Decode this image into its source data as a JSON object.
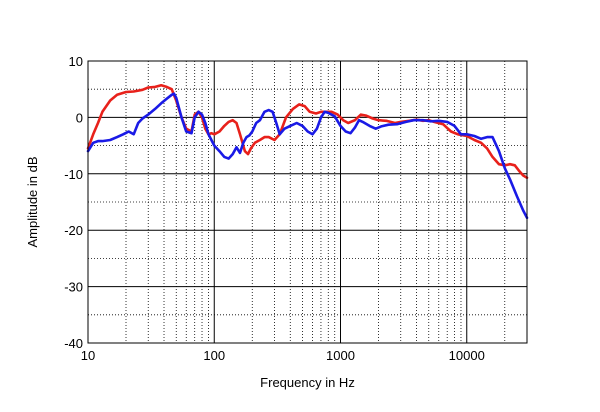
{
  "chart_data": {
    "type": "line",
    "title": "",
    "xlabel": "Frequency in Hz",
    "ylabel": "Amplitude in dB",
    "x_scale": "log",
    "xlim": [
      10,
      30000
    ],
    "ylim": [
      -40,
      10
    ],
    "grid": true,
    "x_ticks": [
      {
        "value": 10,
        "label": "10"
      },
      {
        "value": 100,
        "label": "100"
      },
      {
        "value": 1000,
        "label": "1000"
      },
      {
        "value": 10000,
        "label": "10000"
      }
    ],
    "y_ticks": [
      {
        "value": 10,
        "label": "10"
      },
      {
        "value": 0,
        "label": "0"
      },
      {
        "value": -10,
        "label": "-10"
      },
      {
        "value": -20,
        "label": "-20"
      },
      {
        "value": -30,
        "label": "-30"
      },
      {
        "value": -40,
        "label": "-40"
      }
    ],
    "series": [
      {
        "color": "#e8211b",
        "x": [
          10,
          11,
          12,
          13,
          15,
          17,
          20,
          23,
          27,
          30,
          34,
          38,
          42,
          46,
          50,
          55,
          60,
          66,
          70,
          75,
          80,
          85,
          90,
          95,
          100,
          110,
          120,
          130,
          140,
          150,
          160,
          175,
          185,
          195,
          210,
          230,
          250,
          270,
          300,
          330,
          370,
          420,
          470,
          520,
          570,
          640,
          700,
          780,
          850,
          950,
          1050,
          1150,
          1300,
          1450,
          1600,
          1800,
          2000,
          2300,
          2700,
          3000,
          3500,
          4000,
          4500,
          5000,
          5500,
          6500,
          7500,
          8500,
          10000,
          11500,
          13000,
          14500,
          16000,
          18000,
          20000,
          22000,
          24000,
          26000,
          28000,
          30000
        ],
        "y": [
          -5.5,
          -3,
          -1,
          1,
          3,
          4,
          4.5,
          4.6,
          4.9,
          5.3,
          5.4,
          5.7,
          5.4,
          5,
          3,
          0,
          -2,
          -2.5,
          0.5,
          1,
          0,
          -2,
          -3,
          -2.8,
          -3,
          -2.5,
          -1.5,
          -0.8,
          -0.5,
          -1,
          -3,
          -6,
          -6.5,
          -5.5,
          -4.5,
          -4,
          -3.5,
          -3.5,
          -4,
          -3,
          0,
          1.5,
          2.3,
          2,
          1,
          0.7,
          1,
          1,
          1,
          0.5,
          -0.5,
          -1,
          -0.5,
          0.5,
          0.3,
          -0.2,
          -0.5,
          -0.6,
          -1,
          -0.8,
          -0.6,
          -0.4,
          -0.6,
          -0.5,
          -0.8,
          -1.2,
          -2.5,
          -3,
          -3.3,
          -4,
          -4.5,
          -5.5,
          -7,
          -8.3,
          -8.5,
          -8.3,
          -8.5,
          -9.5,
          -10.3,
          -10.7
        ]
      },
      {
        "color": "#1a1ae6",
        "x": [
          10,
          11,
          12,
          13,
          15,
          17,
          19,
          21,
          23,
          25,
          27,
          30,
          34,
          38,
          42,
          46,
          48,
          50,
          55,
          60,
          66,
          70,
          75,
          80,
          85,
          90,
          95,
          100,
          110,
          120,
          130,
          140,
          150,
          160,
          170,
          180,
          190,
          200,
          215,
          230,
          250,
          270,
          290,
          310,
          330,
          360,
          400,
          450,
          500,
          550,
          600,
          650,
          700,
          750,
          800,
          900,
          1000,
          1100,
          1200,
          1300,
          1400,
          1500,
          1700,
          1900,
          2100,
          2400,
          2800,
          3300,
          3800,
          4500,
          5200,
          6000,
          7000,
          8000,
          9000,
          10000,
          11500,
          13000,
          14500,
          16000,
          18000,
          20000,
          22000,
          25000,
          28000,
          30000
        ],
        "y": [
          -6,
          -4.5,
          -4.2,
          -4.2,
          -4,
          -3.5,
          -3,
          -2.5,
          -3,
          -1,
          -0.2,
          0.5,
          1.5,
          2.5,
          3.3,
          4,
          4.2,
          3.5,
          0,
          -2.5,
          -2.8,
          0,
          1,
          0.5,
          -1,
          -3,
          -4,
          -5,
          -6,
          -7,
          -7.3,
          -6.5,
          -5.3,
          -6.3,
          -4.5,
          -3.5,
          -3.2,
          -2.5,
          -1,
          -0.5,
          1,
          1.3,
          1,
          -1,
          -3,
          -2,
          -1.5,
          -1,
          -1.5,
          -2.5,
          -3,
          -2,
          0,
          1,
          0.8,
          0.2,
          -1.5,
          -2.5,
          -2.8,
          -1.8,
          -0.5,
          -0.8,
          -1.5,
          -2,
          -1.6,
          -1.3,
          -1.2,
          -0.8,
          -0.5,
          -0.5,
          -0.7,
          -0.6,
          -0.8,
          -1.5,
          -3,
          -3,
          -3.3,
          -3.8,
          -3.5,
          -3.5,
          -6,
          -9,
          -11,
          -14,
          -16.5,
          -17.8
        ]
      }
    ]
  }
}
